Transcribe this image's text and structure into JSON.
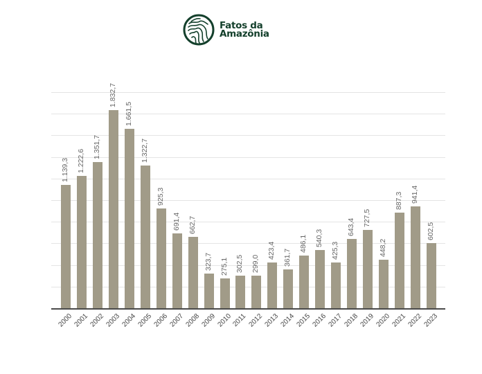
{
  "brand": {
    "line1": "Fatos da",
    "line2": "Amazônia",
    "color": "#14402c"
  },
  "chart_data": {
    "type": "bar",
    "title": "",
    "xlabel": "",
    "ylabel": "",
    "ylim": [
      0,
      2000
    ],
    "grid": true,
    "gridline_step": 200,
    "y_tick_labels_visible": false,
    "legend": null,
    "bar_color": "#a19b88",
    "categories": [
      "2000",
      "2001",
      "2002",
      "2003",
      "2004",
      "2005",
      "2006",
      "2007",
      "2008",
      "2009",
      "2010",
      "2011",
      "2012",
      "2013",
      "2014",
      "2015",
      "2016",
      "2017",
      "2018",
      "2019",
      "2020",
      "2021",
      "2022",
      "2023"
    ],
    "values": [
      1139.3,
      1222.6,
      1351.7,
      1832.7,
      1661.5,
      1322.7,
      925.3,
      691.4,
      662.7,
      323.7,
      275.1,
      302.5,
      299.0,
      423.4,
      361.7,
      486.1,
      540.3,
      425.3,
      643.4,
      727.5,
      448.2,
      887.3,
      941.4,
      602.5
    ],
    "value_labels": [
      "1.139,3",
      "1.222,6",
      "1.351,7",
      "1.832,7",
      "1.661,5",
      "1.322,7",
      "925,3",
      "691,4",
      "662,7",
      "323,7",
      "275,1",
      "302,5",
      "299,0",
      "423,4",
      "361,7",
      "486,1",
      "540,3",
      "425,3",
      "643,4",
      "727,5",
      "448,2",
      "887,3",
      "941,4",
      "602,5"
    ]
  }
}
